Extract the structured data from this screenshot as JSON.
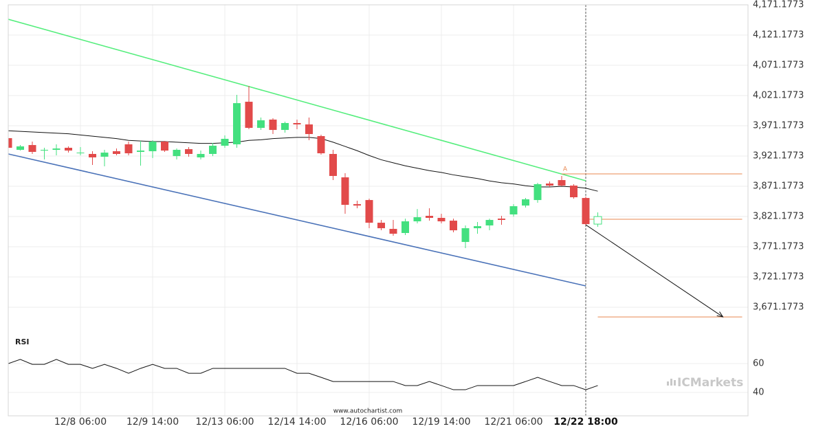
{
  "chart_data": {
    "type": "candlestick",
    "categories": [
      null,
      null,
      null,
      null,
      null,
      null,
      "12/8 06:00",
      null,
      null,
      null,
      null,
      null,
      "12/9 14:00",
      null,
      null,
      null,
      null,
      null,
      "12/13 06:00",
      null,
      null,
      null,
      null,
      null,
      "12/14 14:00",
      null,
      null,
      null,
      null,
      null,
      "12/16 06:00",
      null,
      null,
      null,
      null,
      null,
      "12/19 14:00",
      null,
      null,
      null,
      null,
      null,
      "12/21 06:00",
      null,
      null,
      null,
      null,
      null,
      "12/22 18:00",
      null
    ],
    "open": [
      3950.7,
      3931.4,
      3939.3,
      3930.2,
      3931.4,
      3934.8,
      3925.7,
      3924.6,
      3920.0,
      3929.1,
      3940.5,
      3928.0,
      3929.1,
      3945.0,
      3921.1,
      3932.5,
      3918.9,
      3924.6,
      3938.2,
      3940.5,
      4010.9,
      3967.7,
      3981.4,
      3964.3,
      3975.7,
      3973.4,
      3954.1,
      3924.6,
      3885.9,
      3841.6,
      3848.4,
      3810.9,
      3800.7,
      3793.9,
      3813.2,
      3822.3,
      3818.9,
      3814.3,
      3779.1,
      3801.8,
      3806.4,
      3817.7,
      3824.6,
      3839.3,
      3848.4,
      3875.7,
      3881.4,
      3872.3,
      3851.8,
      3808.6
    ],
    "high": [
      3954.1,
      3939.3,
      3945.0,
      3934.8,
      3940.5,
      3937.1,
      3935.9,
      3929.1,
      3931.4,
      3933.6,
      3945.0,
      3946.1,
      3947.3,
      3946.1,
      3933.6,
      3935.9,
      3930.2,
      3942.7,
      3955.2,
      4022.3,
      4037.1,
      3984.8,
      3983.6,
      3978.0,
      3981.4,
      3984.8,
      3956.4,
      3931.4,
      3892.7,
      3847.3,
      3850.7,
      3815.5,
      3815.5,
      3817.7,
      3833.6,
      3834.8,
      3825.7,
      3817.7,
      3806.4,
      3812.1,
      3817.7,
      3822.3,
      3841.6,
      3851.8,
      3876.8,
      3879.1,
      3888.2,
      3874.6,
      3854.1,
      3828.0
    ],
    "low": [
      3933.6,
      3930.2,
      3924.6,
      3915.5,
      3922.3,
      3926.8,
      3922.3,
      3906.4,
      3904.1,
      3922.3,
      3922.3,
      3905.2,
      3917.7,
      3928.0,
      3915.5,
      3920.0,
      3915.5,
      3921.1,
      3934.8,
      3934.8,
      3965.5,
      3964.3,
      3957.5,
      3959.8,
      3965.5,
      3947.3,
      3923.4,
      3881.4,
      3825.7,
      3834.8,
      3801.8,
      3798.4,
      3789.3,
      3790.5,
      3809.8,
      3814.3,
      3809.8,
      3795.0,
      3768.9,
      3792.7,
      3798.4,
      3807.5,
      3821.1,
      3835.9,
      3843.9,
      3870.0,
      3871.1,
      3850.7,
      3806.4,
      3804.1
    ],
    "close": [
      3934.8,
      3937.1,
      3928.0,
      3931.4,
      3933.6,
      3930.2,
      3926.8,
      3918.9,
      3926.8,
      3924.6,
      3925.7,
      3930.2,
      3945.0,
      3930.2,
      3931.4,
      3924.6,
      3924.6,
      3938.2,
      3949.6,
      4008.6,
      3967.7,
      3980.2,
      3964.3,
      3975.7,
      3973.4,
      3957.5,
      3925.7,
      3888.2,
      3840.5,
      3839.3,
      3810.9,
      3801.8,
      3792.7,
      3813.2,
      3820.0,
      3818.9,
      3813.2,
      3798.4,
      3801.8,
      3805.2,
      3815.5,
      3815.5,
      3838.2,
      3849.6,
      3874.6,
      3872.3,
      3872.3,
      3853.0,
      3808.6,
      3821.1
    ],
    "up_color": "#43e07f",
    "down_color": "#e24a4a",
    "ylim": [
      3633.7,
      4179.1
    ],
    "yticks": [
      {
        "value": 4171.1773,
        "label": "4,171.1773"
      },
      {
        "value": 4121.1773,
        "label": "4,121.1773"
      },
      {
        "value": 4071.1773,
        "label": "4,071.1773"
      },
      {
        "value": 4021.1773,
        "label": "4,021.1773"
      },
      {
        "value": 3971.1773,
        "label": "3,971.1773"
      },
      {
        "value": 3921.1773,
        "label": "3,921.1773"
      },
      {
        "value": 3871.1773,
        "label": "3,871.1773"
      },
      {
        "value": 3821.1773,
        "label": "3,821.1773"
      },
      {
        "value": 3771.1773,
        "label": "3,771.1773"
      },
      {
        "value": 3721.1773,
        "label": "3,721.1773"
      },
      {
        "value": 3671.1773,
        "label": "3,671.1773"
      }
    ],
    "grid": true,
    "moving_average": {
      "color": "#111111",
      "values": [
        3963,
        3962,
        3961,
        3960,
        3959,
        3958,
        3956,
        3954,
        3952,
        3950,
        3947,
        3946,
        3945,
        3945,
        3944,
        3943,
        3942,
        3942,
        3943,
        3944,
        3947,
        3948,
        3950,
        3951,
        3952,
        3952,
        3950,
        3944,
        3937,
        3930,
        3922,
        3915,
        3910,
        3905,
        3901,
        3897,
        3894,
        3890,
        3887,
        3884,
        3880,
        3877,
        3875,
        3872,
        3870,
        3870,
        3871,
        3870,
        3868,
        3863
      ]
    },
    "trend_lines": [
      {
        "color": "#55ee7d",
        "x": [
          0,
          48
        ],
        "values": [
          4147.3,
          3880.3
        ]
      },
      {
        "color": "#4a72b8",
        "x": [
          0,
          48
        ],
        "values": [
          3924.6,
          3706.4
        ]
      }
    ],
    "levels": [
      {
        "color": "#e8874f",
        "x": [
          46,
          61
        ],
        "value": 3891.6
      },
      {
        "color": "#e8874f",
        "x": [
          48.3,
          61
        ],
        "value": 3816.6
      },
      {
        "color": "#e8874f",
        "x": [
          49,
          61
        ],
        "value": 3655.2
      }
    ],
    "projection": {
      "color": "#111111",
      "x": [
        48,
        59.4
      ],
      "values": [
        3807.5,
        3655.2
      ]
    },
    "annotation": "A",
    "rsi": {
      "title": "RSI",
      "color": "#111111",
      "ylim": [
        26.2,
        78.6
      ],
      "yticks": [
        60,
        40
      ],
      "values": [
        60,
        62.9,
        59.5,
        59.5,
        62.9,
        59.5,
        59.5,
        56.7,
        59.5,
        56.7,
        53.3,
        56.7,
        59.5,
        56.7,
        56.7,
        53.3,
        53.3,
        56.7,
        56.7,
        56.7,
        56.7,
        56.7,
        56.7,
        56.7,
        53.3,
        53.3,
        50.5,
        47.6,
        47.6,
        47.6,
        47.6,
        47.6,
        47.6,
        44.8,
        44.8,
        47.6,
        44.8,
        41.9,
        41.9,
        44.8,
        44.8,
        44.8,
        44.8,
        47.6,
        50.5,
        47.6,
        44.8,
        44.8,
        41.9,
        44.8
      ]
    },
    "watermark": "ICMarkets",
    "source": "www.autochartist.com"
  }
}
